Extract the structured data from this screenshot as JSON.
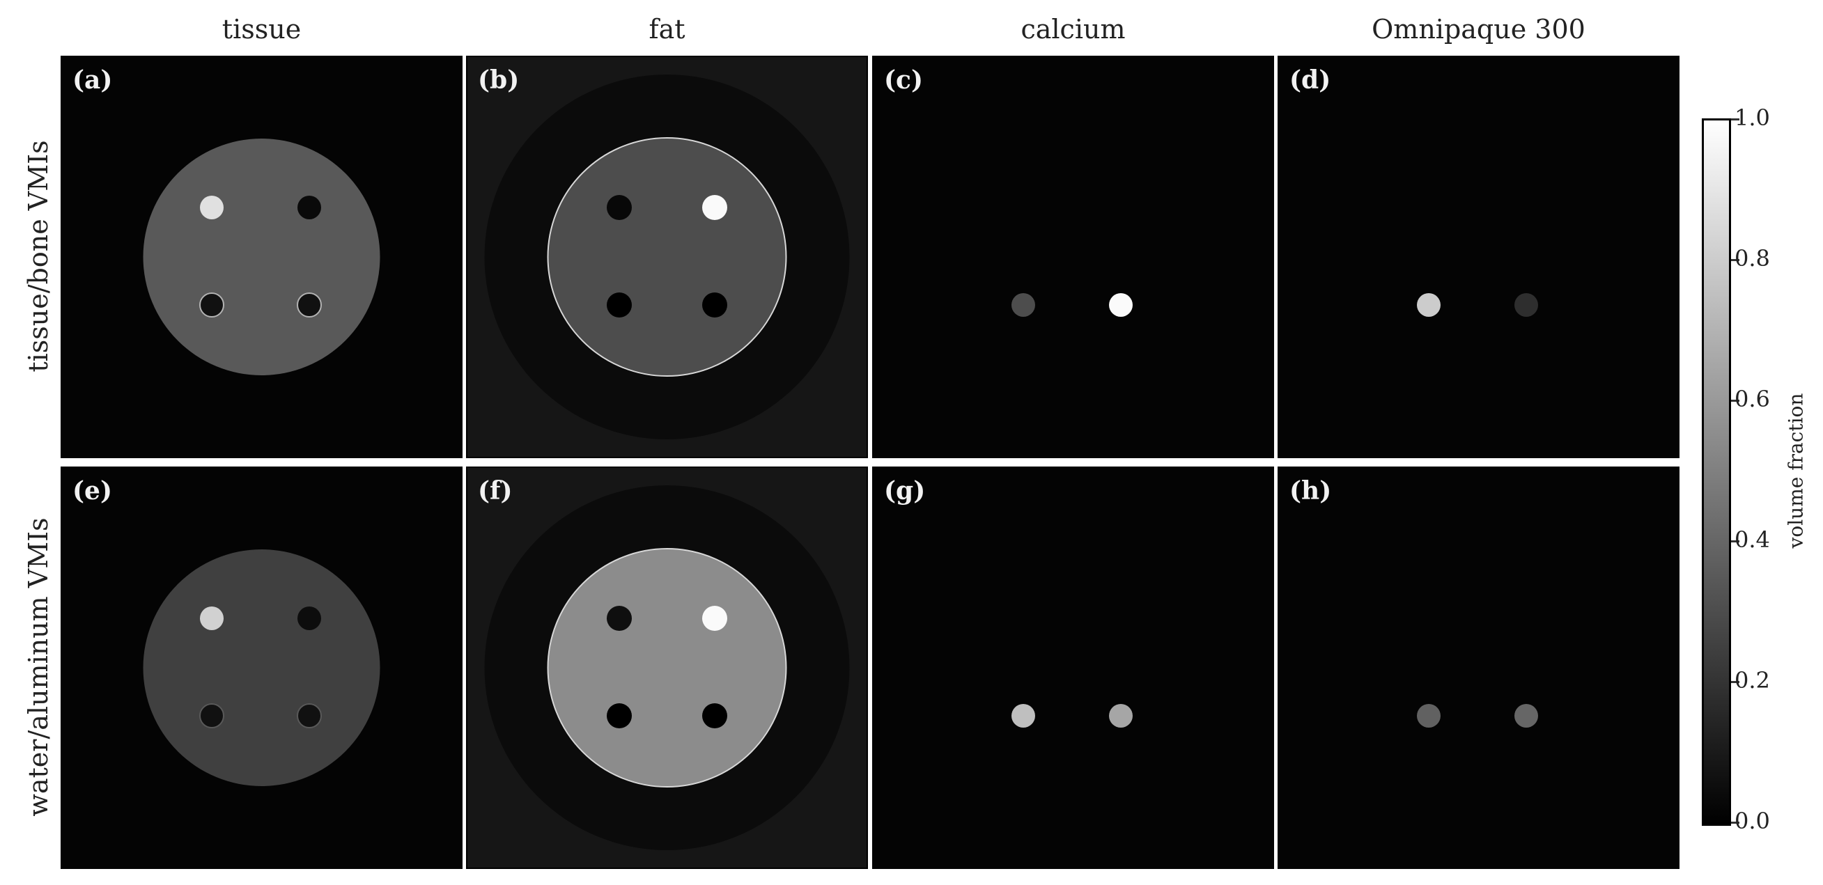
{
  "columns": [
    "tissue",
    "fat",
    "calcium",
    "Omnipaque 300"
  ],
  "rows": [
    "tissue/bone VMIs",
    "water/aluminum VMIs"
  ],
  "panels": [
    {
      "label": "(a)",
      "kind": "tissue",
      "disk": 0.35,
      "insert_tl": 0.88,
      "insert_tr": 0.04,
      "ring_bl": 0.7,
      "ring_br": 0.7
    },
    {
      "label": "(b)",
      "kind": "fat",
      "disk": 0.3,
      "insert_tl": 0.03,
      "insert_tr": 0.98,
      "insert_bl": 0.0,
      "insert_br": 0.0
    },
    {
      "label": "(c)",
      "kind": "calcium",
      "dot_left": 0.3,
      "dot_right": 0.98
    },
    {
      "label": "(d)",
      "kind": "contrast",
      "dot_left": 0.8,
      "dot_right": 0.18
    },
    {
      "label": "(e)",
      "kind": "tissue",
      "disk": 0.25,
      "insert_tl": 0.82,
      "insert_tr": 0.05,
      "ring_bl": 0.35,
      "ring_br": 0.35
    },
    {
      "label": "(f)",
      "kind": "fat",
      "disk": 0.55,
      "insert_tl": 0.06,
      "insert_tr": 0.98,
      "insert_bl": 0.0,
      "insert_br": 0.0
    },
    {
      "label": "(g)",
      "kind": "calcium",
      "dot_left": 0.75,
      "dot_right": 0.65
    },
    {
      "label": "(h)",
      "kind": "contrast",
      "dot_left": 0.38,
      "dot_right": 0.4
    }
  ],
  "colorbar": {
    "title": "volume fraction",
    "ticks": [
      "1.0",
      "0.8",
      "0.6",
      "0.4",
      "0.2",
      "0.0"
    ],
    "range": [
      0.0,
      1.0
    ]
  }
}
